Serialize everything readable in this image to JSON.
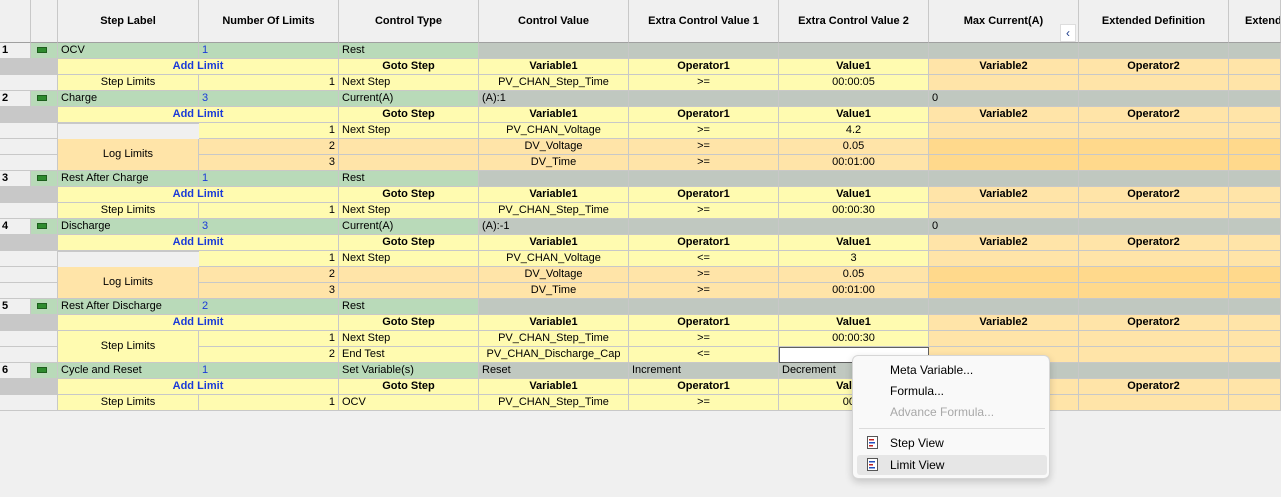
{
  "columns": [
    "",
    "Step Label",
    "Number Of Limits",
    "Control Type",
    "Control Value",
    "Extra Control Value 1",
    "Extra Control Value 2",
    "Max Current(A)",
    "Extended Definition",
    "Extend"
  ],
  "limit_header": {
    "add_limit": "Add Limit",
    "goto_step": "Goto Step",
    "variable1": "Variable1",
    "operator1": "Operator1",
    "value1": "Value1",
    "variable2": "Variable2",
    "operator2": "Operator2"
  },
  "steps": [
    {
      "num": "1",
      "label": "OCV",
      "limits": "1",
      "control_type": "Rest",
      "control_value": "",
      "extra1": "",
      "extra2": "",
      "max_current": ""
    },
    {
      "num": "2",
      "label": "Charge",
      "limits": "3",
      "control_type": "Current(A)",
      "control_value": "(A):1",
      "extra1": "",
      "extra2": "",
      "max_current": "0"
    },
    {
      "num": "3",
      "label": "Rest After Charge",
      "limits": "1",
      "control_type": "Rest",
      "control_value": "",
      "extra1": "",
      "extra2": "",
      "max_current": ""
    },
    {
      "num": "4",
      "label": "Discharge",
      "limits": "3",
      "control_type": "Current(A)",
      "control_value": "(A):-1",
      "extra1": "",
      "extra2": "",
      "max_current": "0"
    },
    {
      "num": "5",
      "label": "Rest After Discharge",
      "limits": "2",
      "control_type": "Rest",
      "control_value": "",
      "extra1": "",
      "extra2": "",
      "max_current": ""
    },
    {
      "num": "6",
      "label": "Cycle and Reset",
      "limits": "1",
      "control_type": "Set Variable(s)",
      "control_value": "Reset",
      "extra1": "Increment",
      "extra2": "Decrement",
      "max_current": ""
    }
  ],
  "limit_rows": [
    {
      "group": "Step Limits",
      "n": "1",
      "goto": "Next Step",
      "var1": "PV_CHAN_Step_Time",
      "op1": ">=",
      "val1": "00:00:05"
    },
    {
      "group": "Step Limits",
      "n": "1",
      "goto": "Next Step",
      "var1": "PV_CHAN_Voltage",
      "op1": ">=",
      "val1": "4.2"
    },
    {
      "group": "Log Limits",
      "n": "2",
      "goto": "",
      "var1": "DV_Voltage",
      "op1": ">=",
      "val1": "0.05"
    },
    {
      "group": "",
      "n": "3",
      "goto": "",
      "var1": "DV_Time",
      "op1": ">=",
      "val1": "00:01:00"
    },
    {
      "group": "Step Limits",
      "n": "1",
      "goto": "Next Step",
      "var1": "PV_CHAN_Step_Time",
      "op1": ">=",
      "val1": "00:00:30"
    },
    {
      "group": "Step Limits",
      "n": "1",
      "goto": "Next Step",
      "var1": "PV_CHAN_Voltage",
      "op1": "<=",
      "val1": "3"
    },
    {
      "group": "Log Limits",
      "n": "2",
      "goto": "",
      "var1": "DV_Voltage",
      "op1": ">=",
      "val1": "0.05"
    },
    {
      "group": "",
      "n": "3",
      "goto": "",
      "var1": "DV_Time",
      "op1": ">=",
      "val1": "00:01:00"
    },
    {
      "group": "Step Limits",
      "n": "1",
      "goto": "Next Step",
      "var1": "PV_CHAN_Step_Time",
      "op1": ">=",
      "val1": "00:00:30"
    },
    {
      "group": "",
      "n": "2",
      "goto": "End Test",
      "var1": "PV_CHAN_Discharge_Cap",
      "op1": "<=",
      "val1": ""
    },
    {
      "group": "Step Limits",
      "n": "1",
      "goto": "OCV",
      "var1": "PV_CHAN_Step_Time",
      "op1": ">=",
      "val1": "00:0"
    }
  ],
  "partial_val_header": "Va",
  "scroll_button": "‹",
  "context_menu": {
    "items": [
      {
        "label": "Meta Variable...",
        "disabled": false,
        "icon": ""
      },
      {
        "label": "Formula...",
        "disabled": false,
        "icon": ""
      },
      {
        "label": "Advance Formula...",
        "disabled": true,
        "icon": ""
      },
      {
        "label": "Step View",
        "disabled": false,
        "icon": "step-view-icon"
      },
      {
        "label": "Limit View",
        "disabled": false,
        "icon": "limit-view-icon"
      }
    ]
  },
  "colors": {
    "step_row": "#b9dab9",
    "limit_yellow": "#fffbb0",
    "limit_peach": "#ffe4a8",
    "arrow": "#e02020",
    "link_blue": "#1a3ad8"
  }
}
